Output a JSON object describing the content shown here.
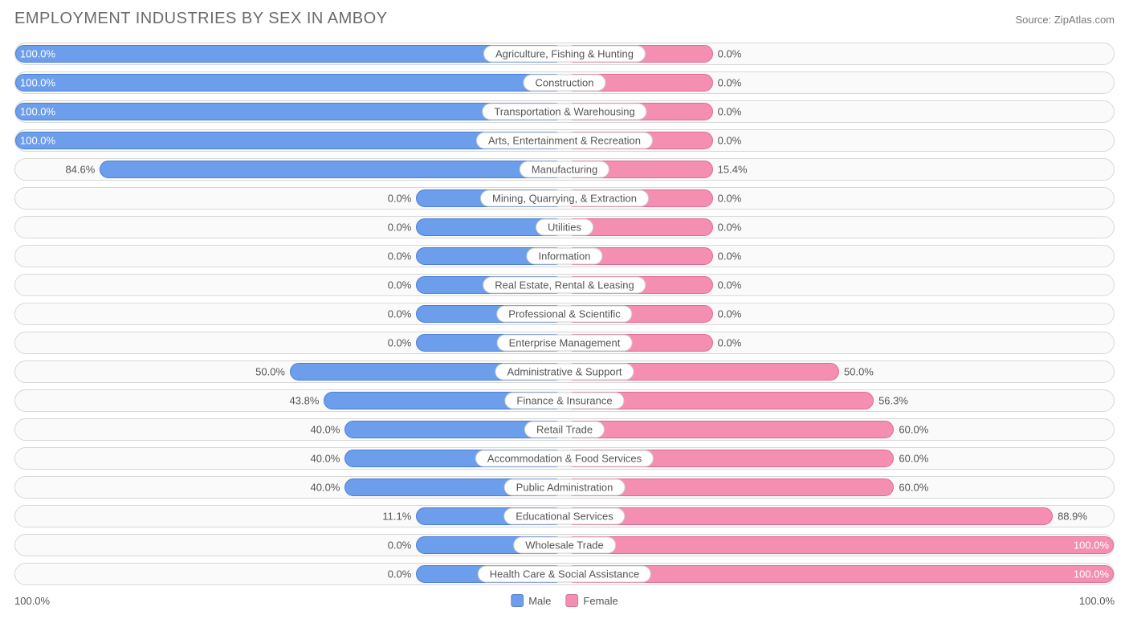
{
  "title": "EMPLOYMENT INDUSTRIES BY SEX IN AMBOY",
  "source": "Source: ZipAtlas.com",
  "axis_left": "100.0%",
  "axis_right": "100.0%",
  "legend": {
    "male": "Male",
    "female": "Female"
  },
  "colors": {
    "male_fill": "#6d9eeb",
    "male_border": "#4a7fd6",
    "female_fill": "#f48fb1",
    "female_border": "#e06a92",
    "row_border": "#d8d8d8",
    "row_bg": "#fafafa",
    "text": "#555555",
    "title_text": "#6b6b6b",
    "min_bar_pct": 27
  },
  "chart": {
    "type": "diverging-bar",
    "rows": [
      {
        "label": "Agriculture, Fishing & Hunting",
        "male": 100.0,
        "female": 0.0,
        "male_label": "100.0%",
        "female_label": "0.0%"
      },
      {
        "label": "Construction",
        "male": 100.0,
        "female": 0.0,
        "male_label": "100.0%",
        "female_label": "0.0%"
      },
      {
        "label": "Transportation & Warehousing",
        "male": 100.0,
        "female": 0.0,
        "male_label": "100.0%",
        "female_label": "0.0%"
      },
      {
        "label": "Arts, Entertainment & Recreation",
        "male": 100.0,
        "female": 0.0,
        "male_label": "100.0%",
        "female_label": "0.0%"
      },
      {
        "label": "Manufacturing",
        "male": 84.6,
        "female": 15.4,
        "male_label": "84.6%",
        "female_label": "15.4%"
      },
      {
        "label": "Mining, Quarrying, & Extraction",
        "male": 0.0,
        "female": 0.0,
        "male_label": "0.0%",
        "female_label": "0.0%"
      },
      {
        "label": "Utilities",
        "male": 0.0,
        "female": 0.0,
        "male_label": "0.0%",
        "female_label": "0.0%"
      },
      {
        "label": "Information",
        "male": 0.0,
        "female": 0.0,
        "male_label": "0.0%",
        "female_label": "0.0%"
      },
      {
        "label": "Real Estate, Rental & Leasing",
        "male": 0.0,
        "female": 0.0,
        "male_label": "0.0%",
        "female_label": "0.0%"
      },
      {
        "label": "Professional & Scientific",
        "male": 0.0,
        "female": 0.0,
        "male_label": "0.0%",
        "female_label": "0.0%"
      },
      {
        "label": "Enterprise Management",
        "male": 0.0,
        "female": 0.0,
        "male_label": "0.0%",
        "female_label": "0.0%"
      },
      {
        "label": "Administrative & Support",
        "male": 50.0,
        "female": 50.0,
        "male_label": "50.0%",
        "female_label": "50.0%"
      },
      {
        "label": "Finance & Insurance",
        "male": 43.8,
        "female": 56.3,
        "male_label": "43.8%",
        "female_label": "56.3%"
      },
      {
        "label": "Retail Trade",
        "male": 40.0,
        "female": 60.0,
        "male_label": "40.0%",
        "female_label": "60.0%"
      },
      {
        "label": "Accommodation & Food Services",
        "male": 40.0,
        "female": 60.0,
        "male_label": "40.0%",
        "female_label": "60.0%"
      },
      {
        "label": "Public Administration",
        "male": 40.0,
        "female": 60.0,
        "male_label": "40.0%",
        "female_label": "60.0%"
      },
      {
        "label": "Educational Services",
        "male": 11.1,
        "female": 88.9,
        "male_label": "11.1%",
        "female_label": "88.9%"
      },
      {
        "label": "Wholesale Trade",
        "male": 0.0,
        "female": 100.0,
        "male_label": "0.0%",
        "female_label": "100.0%"
      },
      {
        "label": "Health Care & Social Assistance",
        "male": 0.0,
        "female": 100.0,
        "male_label": "0.0%",
        "female_label": "100.0%"
      }
    ]
  }
}
